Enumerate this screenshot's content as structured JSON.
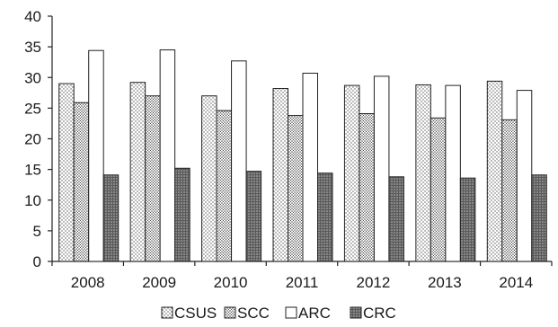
{
  "chart_data": {
    "type": "bar",
    "title": "",
    "xlabel": "",
    "ylabel": "",
    "categories": [
      "2008",
      "2009",
      "2010",
      "2011",
      "2012",
      "2013",
      "2014"
    ],
    "ylim": [
      0,
      40
    ],
    "yticks": [
      0,
      5,
      10,
      15,
      20,
      25,
      30,
      35,
      40
    ],
    "grid": false,
    "legend_position": "bottom",
    "series": [
      {
        "name": "CSUS",
        "pattern": "light-dots",
        "values": [
          29.0,
          29.2,
          27.0,
          28.2,
          28.7,
          28.8,
          29.4
        ]
      },
      {
        "name": "SCC",
        "pattern": "dense-dots",
        "values": [
          25.9,
          27.0,
          24.6,
          23.8,
          24.1,
          23.4,
          23.1
        ]
      },
      {
        "name": "ARC",
        "pattern": "white",
        "values": [
          34.4,
          34.5,
          32.7,
          30.7,
          30.2,
          28.7,
          27.9
        ]
      },
      {
        "name": "CRC",
        "pattern": "dark-dots",
        "values": [
          14.1,
          15.2,
          14.7,
          14.4,
          13.8,
          13.6,
          14.1
        ]
      }
    ]
  }
}
